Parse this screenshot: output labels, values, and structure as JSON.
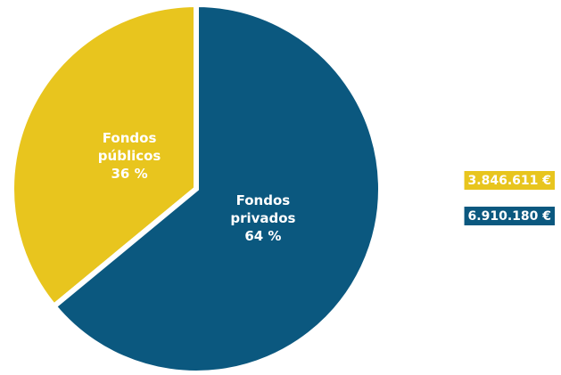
{
  "chart_data": {
    "type": "pie",
    "categories": [
      "Fondos públicos",
      "Fondos privados"
    ],
    "values": [
      36,
      64
    ],
    "value_labels": [
      "36 %",
      "64 %"
    ],
    "colors": [
      "#e8c51e",
      "#0b587f"
    ],
    "amount_labels": [
      "3.846.611 €",
      "6.910.180 €"
    ],
    "start_angle": 230.4
  }
}
